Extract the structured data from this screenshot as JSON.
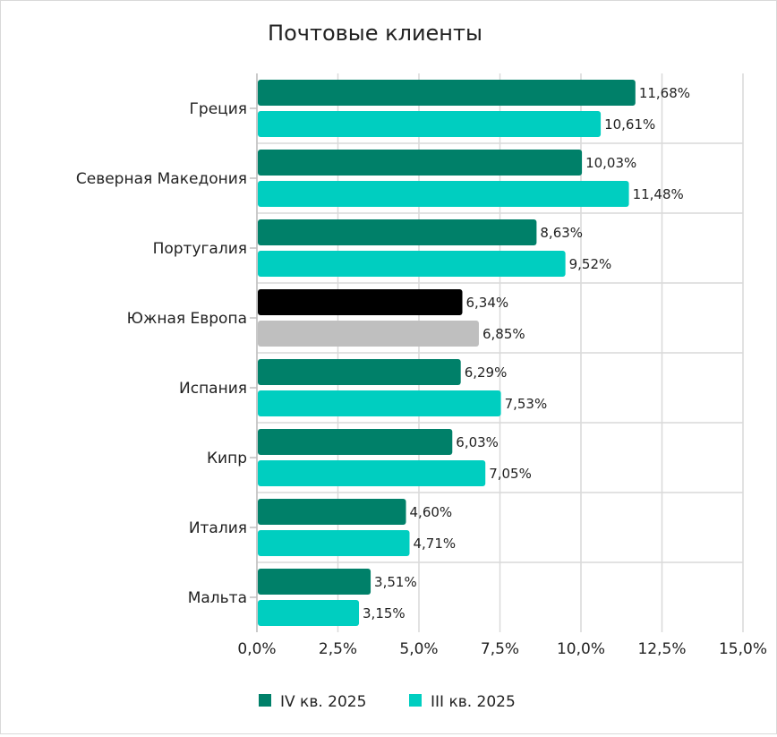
{
  "chart_data": {
    "type": "bar",
    "orientation": "horizontal",
    "title": "Почтовые клиенты",
    "categories": [
      "Греция",
      "Северная Македония",
      "Португалия",
      "Южная Европа",
      "Испания",
      "Кипр",
      "Италия",
      "Мальта"
    ],
    "series": [
      {
        "name": "IV кв. 2025",
        "color": "#008069",
        "values": [
          11.68,
          10.03,
          8.63,
          6.34,
          6.29,
          6.03,
          4.6,
          3.51
        ],
        "labels": [
          "11,68%",
          "10,03%",
          "8,63%",
          "6,34%",
          "6,29%",
          "6,03%",
          "4,60%",
          "3,51%"
        ]
      },
      {
        "name": "III кв. 2025",
        "color": "#00CEC0",
        "values": [
          10.61,
          11.48,
          9.52,
          6.85,
          7.53,
          7.05,
          4.71,
          3.15
        ],
        "labels": [
          "10,61%",
          "11,48%",
          "9,52%",
          "6,85%",
          "7,53%",
          "7,05%",
          "4,71%",
          "3,15%"
        ]
      }
    ],
    "highlight": {
      "category": "Южная Европа",
      "colors": [
        "#000000",
        "#BFBFBF"
      ]
    },
    "xlim": [
      0,
      15
    ],
    "xticks": [
      0,
      2.5,
      5,
      7.5,
      10,
      12.5,
      15
    ],
    "xtick_labels": [
      "0,0%",
      "2,5%",
      "5,0%",
      "7,5%",
      "10,0%",
      "12,5%",
      "15,0%"
    ],
    "grid": true,
    "legend": "bottom"
  }
}
